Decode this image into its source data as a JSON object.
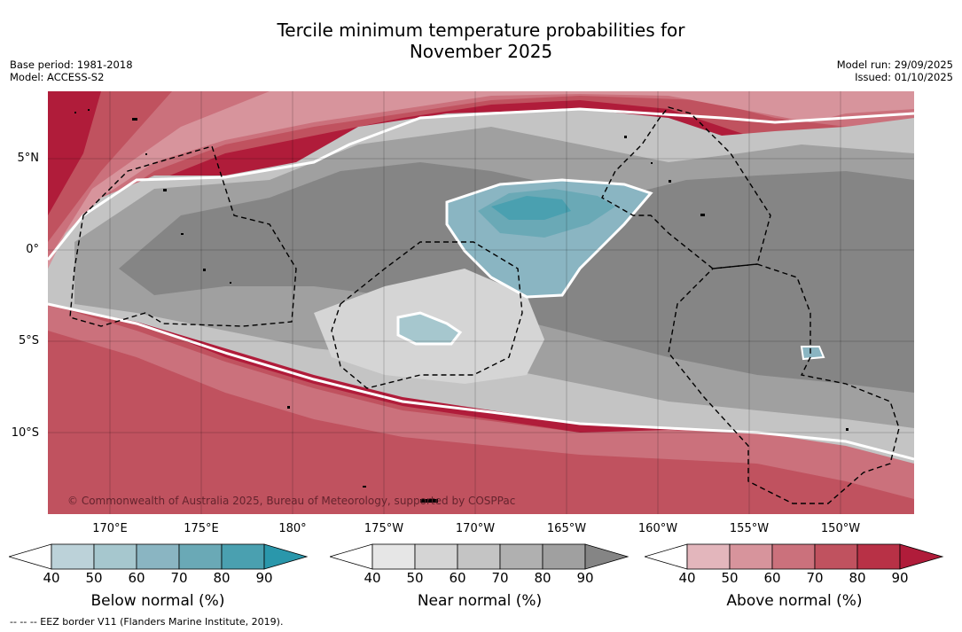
{
  "title_line1": "Tercile minimum temperature probabilities for",
  "title_line2": "November 2025",
  "base_period": "Base period: 1981-2018",
  "model": "Model: ACCESS-S2",
  "model_run": "Model run: 29/09/2025",
  "issued": "Issued: 01/10/2025",
  "lat_labels": [
    "5°N",
    "0°",
    "5°S",
    "10°S"
  ],
  "lon_labels": [
    "170°E",
    "175°E",
    "180°",
    "175°W",
    "170°W",
    "165°W",
    "160°W",
    "155°W",
    "150°W"
  ],
  "copyright": "© Commonwealth of Australia 2025, Bureau of Meteorology, supported by COSPPac",
  "colorbars": [
    {
      "title": "Below normal (%)",
      "ticks": [
        "40",
        "50",
        "60",
        "70",
        "80",
        "90"
      ],
      "colors": [
        "#ffffff",
        "#bcd2d9",
        "#a6c7ce",
        "#8ab5c2",
        "#6aa9b6",
        "#4aa0b0",
        "#2a97ab"
      ]
    },
    {
      "title": "Near normal (%)",
      "ticks": [
        "40",
        "50",
        "60",
        "70",
        "80",
        "90"
      ],
      "colors": [
        "#ffffff",
        "#e6e6e6",
        "#d5d5d5",
        "#c4c4c4",
        "#b0b0b0",
        "#a0a0a0",
        "#858585"
      ]
    },
    {
      "title": "Above normal (%)",
      "ticks": [
        "40",
        "50",
        "60",
        "70",
        "80",
        "90"
      ],
      "colors": [
        "#ffffff",
        "#e3b6bc",
        "#d7949c",
        "#cb717c",
        "#c0525f",
        "#b83146",
        "#b01c3a"
      ]
    }
  ],
  "footer": "--  --  -- EEZ border V11 (Flanders Marine Institute, 2019)."
}
